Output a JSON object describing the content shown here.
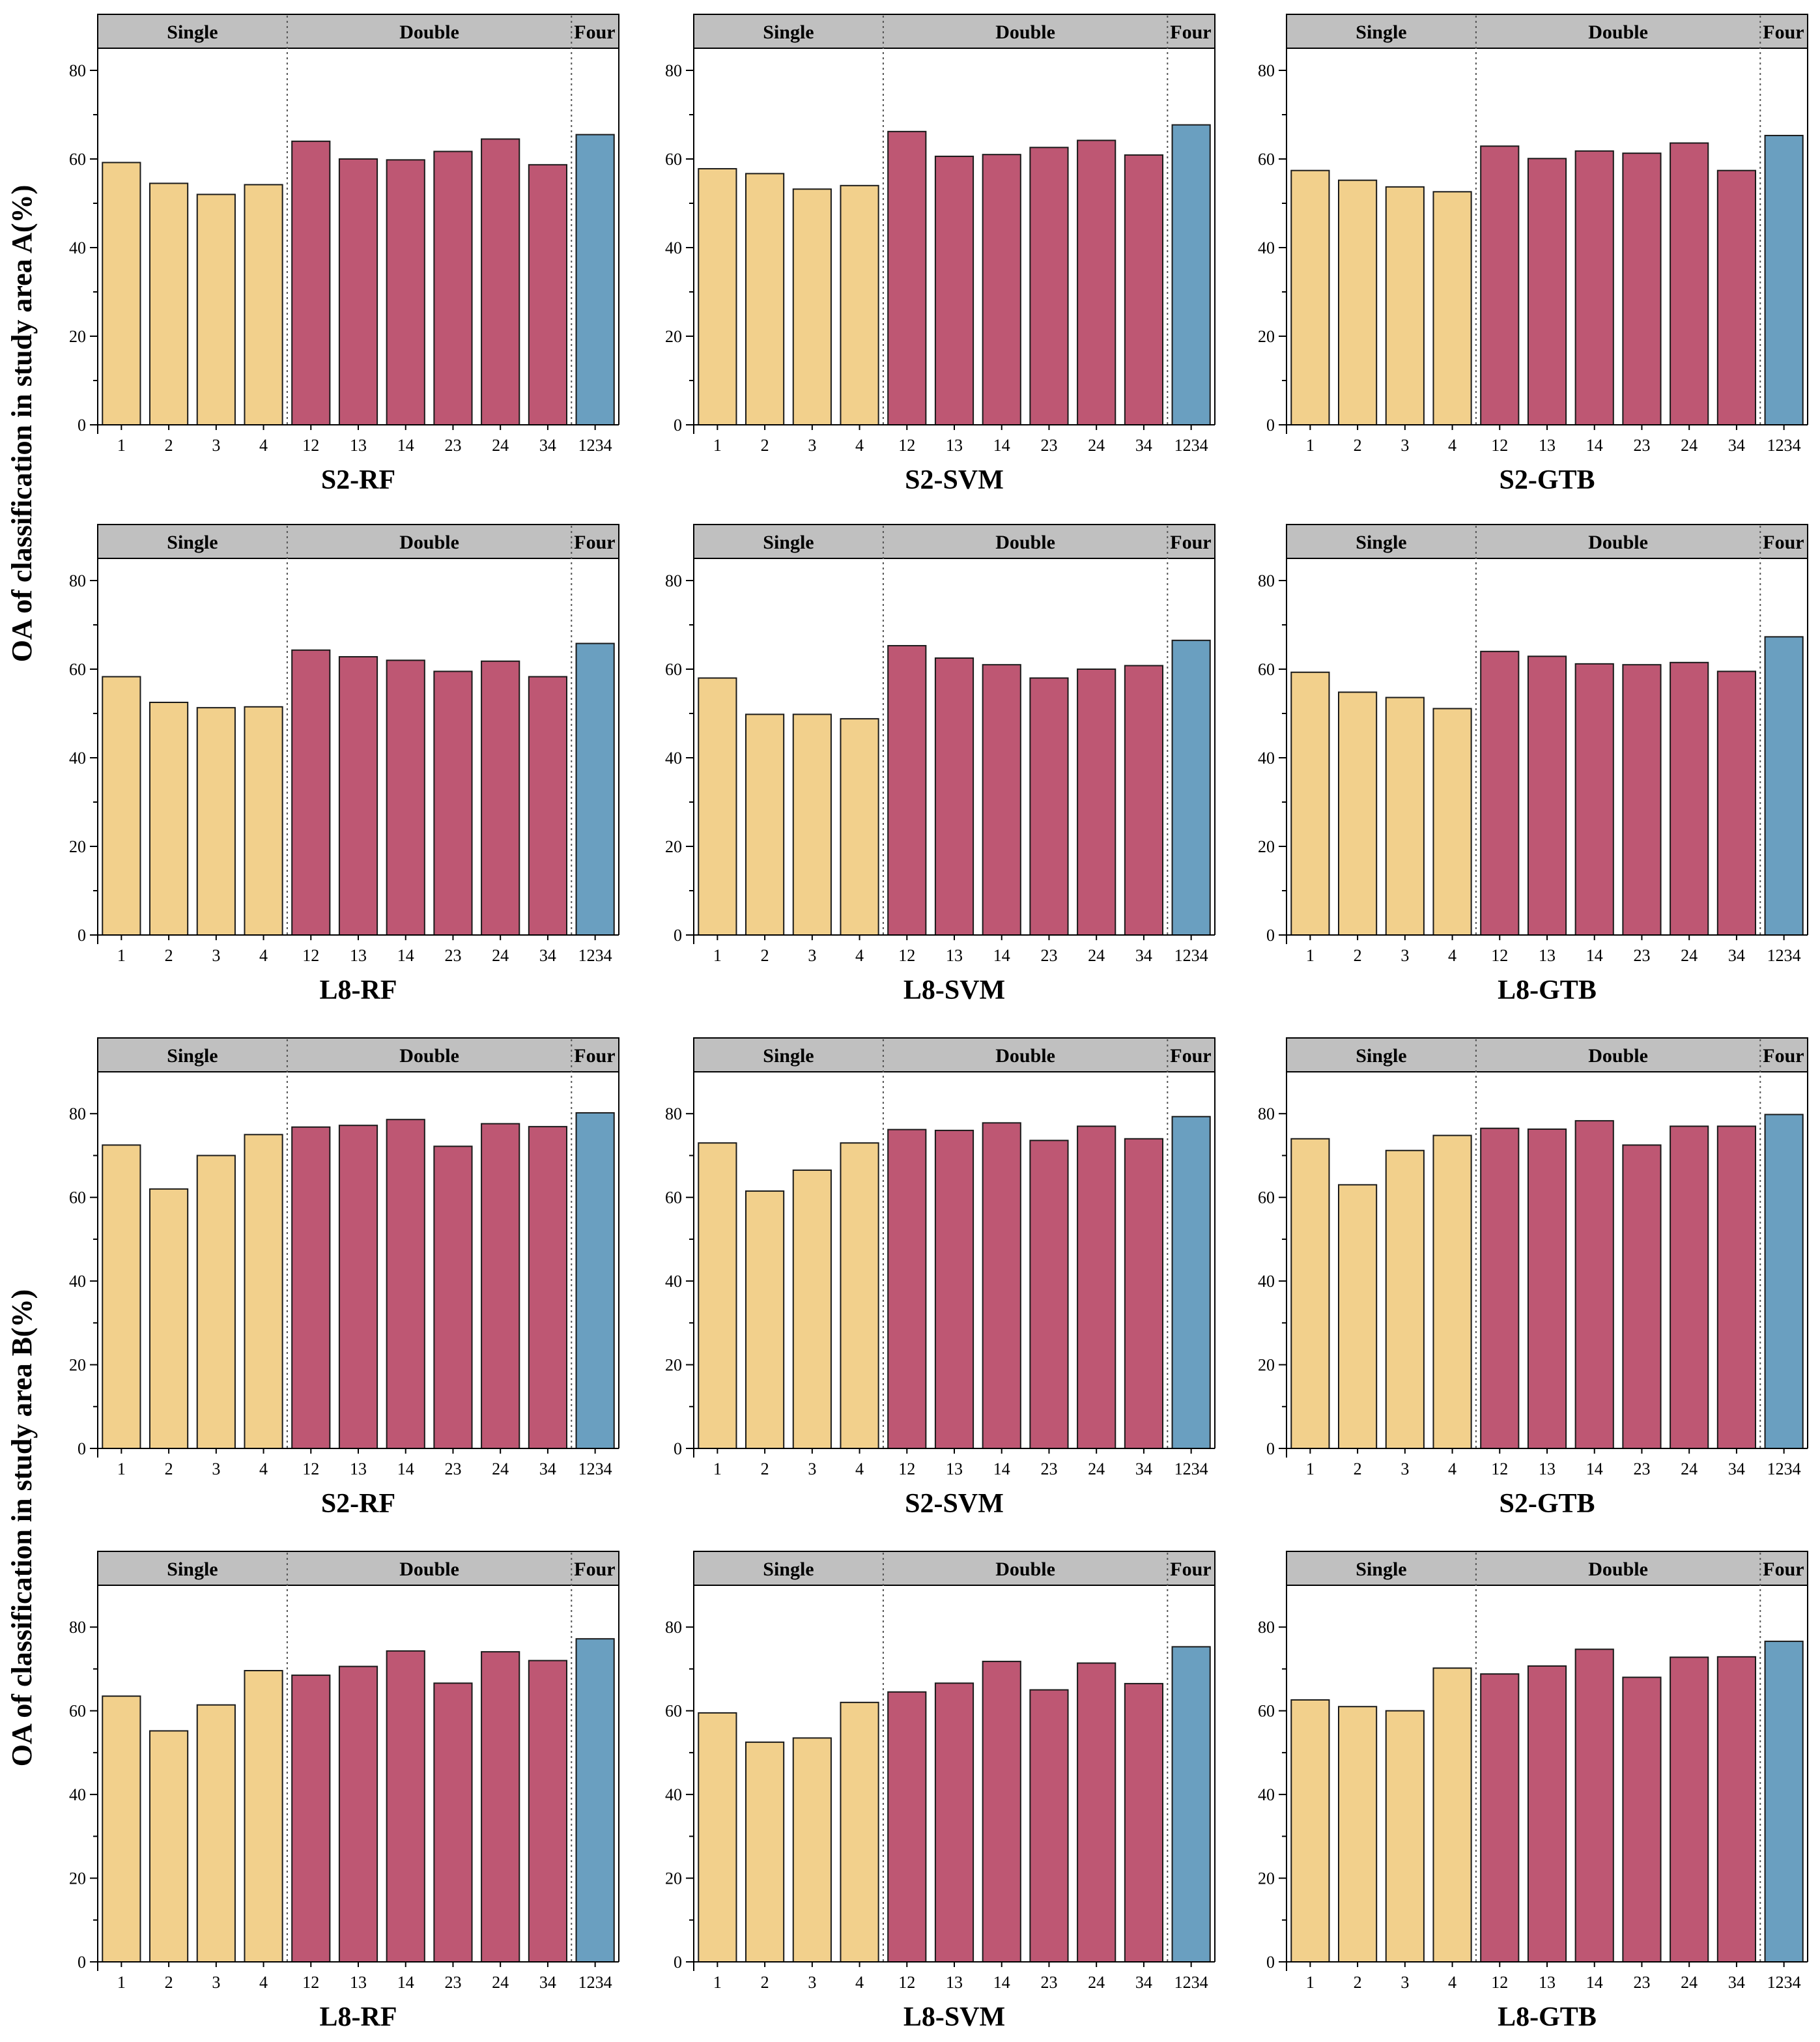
{
  "figure": {
    "ylabel_top": "OA of classification in study area A(%)",
    "ylabel_bottom": "OA of classification in study area B(%)",
    "group_labels": [
      "Single",
      "Double",
      "Four"
    ],
    "colors": {
      "single": "#F2D08C",
      "double": "#BE5773",
      "four": "#6A9FC0",
      "header": "#C0C0C0",
      "frame": "#000000"
    }
  },
  "chart_data": [
    {
      "type": "bar",
      "title": "S2-RF",
      "study_area": "A",
      "categories": [
        "1",
        "2",
        "3",
        "4",
        "12",
        "13",
        "14",
        "23",
        "24",
        "34",
        "1234"
      ],
      "values": [
        59.2,
        54.5,
        52.0,
        54.2,
        64.0,
        60.0,
        59.8,
        61.7,
        64.5,
        58.7,
        65.5
      ],
      "groups": [
        "single",
        "single",
        "single",
        "single",
        "double",
        "double",
        "double",
        "double",
        "double",
        "double",
        "four"
      ],
      "ylim": [
        0,
        85
      ],
      "yticks": [
        0,
        20,
        40,
        60,
        80
      ]
    },
    {
      "type": "bar",
      "title": "S2-SVM",
      "study_area": "A",
      "categories": [
        "1",
        "2",
        "3",
        "4",
        "12",
        "13",
        "14",
        "23",
        "24",
        "34",
        "1234"
      ],
      "values": [
        57.8,
        56.7,
        53.2,
        54.0,
        66.2,
        60.6,
        61.0,
        62.6,
        64.2,
        60.9,
        67.7
      ],
      "groups": [
        "single",
        "single",
        "single",
        "single",
        "double",
        "double",
        "double",
        "double",
        "double",
        "double",
        "four"
      ],
      "ylim": [
        0,
        85
      ],
      "yticks": [
        0,
        20,
        40,
        60,
        80
      ]
    },
    {
      "type": "bar",
      "title": "S2-GTB",
      "study_area": "A",
      "categories": [
        "1",
        "2",
        "3",
        "4",
        "12",
        "13",
        "14",
        "23",
        "24",
        "34",
        "1234"
      ],
      "values": [
        57.4,
        55.2,
        53.7,
        52.6,
        62.9,
        60.1,
        61.8,
        61.3,
        63.6,
        57.4,
        65.3
      ],
      "groups": [
        "single",
        "single",
        "single",
        "single",
        "double",
        "double",
        "double",
        "double",
        "double",
        "double",
        "four"
      ],
      "ylim": [
        0,
        85
      ],
      "yticks": [
        0,
        20,
        40,
        60,
        80
      ]
    },
    {
      "type": "bar",
      "title": "L8-RF",
      "study_area": "A",
      "categories": [
        "1",
        "2",
        "3",
        "4",
        "12",
        "13",
        "14",
        "23",
        "24",
        "34",
        "1234"
      ],
      "values": [
        58.3,
        52.5,
        51.3,
        51.5,
        64.3,
        62.8,
        62.0,
        59.5,
        61.8,
        58.3,
        65.8
      ],
      "groups": [
        "single",
        "single",
        "single",
        "single",
        "double",
        "double",
        "double",
        "double",
        "double",
        "double",
        "four"
      ],
      "ylim": [
        0,
        85
      ],
      "yticks": [
        0,
        20,
        40,
        60,
        80
      ]
    },
    {
      "type": "bar",
      "title": "L8-SVM",
      "study_area": "A",
      "categories": [
        "1",
        "2",
        "3",
        "4",
        "12",
        "13",
        "14",
        "23",
        "24",
        "34",
        "1234"
      ],
      "values": [
        58.0,
        49.8,
        49.8,
        48.8,
        65.3,
        62.5,
        61.0,
        58.0,
        60.0,
        60.8,
        66.5
      ],
      "groups": [
        "single",
        "single",
        "single",
        "single",
        "double",
        "double",
        "double",
        "double",
        "double",
        "double",
        "four"
      ],
      "ylim": [
        0,
        85
      ],
      "yticks": [
        0,
        20,
        40,
        60,
        80
      ]
    },
    {
      "type": "bar",
      "title": "L8-GTB",
      "study_area": "A",
      "categories": [
        "1",
        "2",
        "3",
        "4",
        "12",
        "13",
        "14",
        "23",
        "24",
        "34",
        "1234"
      ],
      "values": [
        59.3,
        54.8,
        53.6,
        51.1,
        64.0,
        62.9,
        61.2,
        61.0,
        61.5,
        59.5,
        67.3
      ],
      "groups": [
        "single",
        "single",
        "single",
        "single",
        "double",
        "double",
        "double",
        "double",
        "double",
        "double",
        "four"
      ],
      "ylim": [
        0,
        85
      ],
      "yticks": [
        0,
        20,
        40,
        60,
        80
      ]
    },
    {
      "type": "bar",
      "title": "S2-RF",
      "study_area": "B",
      "categories": [
        "1",
        "2",
        "3",
        "4",
        "12",
        "13",
        "14",
        "23",
        "24",
        "34",
        "1234"
      ],
      "values": [
        72.5,
        62.0,
        70.0,
        75.0,
        76.8,
        77.2,
        78.6,
        72.2,
        77.6,
        76.9,
        80.2
      ],
      "groups": [
        "single",
        "single",
        "single",
        "single",
        "double",
        "double",
        "double",
        "double",
        "double",
        "double",
        "four"
      ],
      "ylim": [
        0,
        90
      ],
      "yticks": [
        0,
        20,
        40,
        60,
        80
      ]
    },
    {
      "type": "bar",
      "title": "S2-SVM",
      "study_area": "B",
      "categories": [
        "1",
        "2",
        "3",
        "4",
        "12",
        "13",
        "14",
        "23",
        "24",
        "34",
        "1234"
      ],
      "values": [
        73.0,
        61.5,
        66.5,
        73.0,
        76.2,
        76.0,
        77.8,
        73.6,
        77.0,
        74.0,
        79.3
      ],
      "groups": [
        "single",
        "single",
        "single",
        "single",
        "double",
        "double",
        "double",
        "double",
        "double",
        "double",
        "four"
      ],
      "ylim": [
        0,
        90
      ],
      "yticks": [
        0,
        20,
        40,
        60,
        80
      ]
    },
    {
      "type": "bar",
      "title": "S2-GTB",
      "study_area": "B",
      "categories": [
        "1",
        "2",
        "3",
        "4",
        "12",
        "13",
        "14",
        "23",
        "24",
        "34",
        "1234"
      ],
      "values": [
        74.0,
        63.0,
        71.2,
        74.8,
        76.5,
        76.3,
        78.3,
        72.5,
        77.0,
        77.0,
        79.8
      ],
      "groups": [
        "single",
        "single",
        "single",
        "single",
        "double",
        "double",
        "double",
        "double",
        "double",
        "double",
        "four"
      ],
      "ylim": [
        0,
        90
      ],
      "yticks": [
        0,
        20,
        40,
        60,
        80
      ]
    },
    {
      "type": "bar",
      "title": "L8-RF",
      "study_area": "B",
      "categories": [
        "1",
        "2",
        "3",
        "4",
        "12",
        "13",
        "14",
        "23",
        "24",
        "34",
        "1234"
      ],
      "values": [
        63.5,
        55.2,
        61.4,
        69.6,
        68.5,
        70.6,
        74.3,
        66.6,
        74.1,
        72.0,
        77.2
      ],
      "groups": [
        "single",
        "single",
        "single",
        "single",
        "double",
        "double",
        "double",
        "double",
        "double",
        "double",
        "four"
      ],
      "ylim": [
        0,
        90
      ],
      "yticks": [
        0,
        20,
        40,
        60,
        80
      ]
    },
    {
      "type": "bar",
      "title": "L8-SVM",
      "study_area": "B",
      "categories": [
        "1",
        "2",
        "3",
        "4",
        "12",
        "13",
        "14",
        "23",
        "24",
        "34",
        "1234"
      ],
      "values": [
        59.5,
        52.5,
        53.5,
        62.0,
        64.5,
        66.6,
        71.8,
        65.0,
        71.4,
        66.5,
        75.3
      ],
      "groups": [
        "single",
        "single",
        "single",
        "single",
        "double",
        "double",
        "double",
        "double",
        "double",
        "double",
        "four"
      ],
      "ylim": [
        0,
        90
      ],
      "yticks": [
        0,
        20,
        40,
        60,
        80
      ]
    },
    {
      "type": "bar",
      "title": "L8-GTB",
      "study_area": "B",
      "categories": [
        "1",
        "2",
        "3",
        "4",
        "12",
        "13",
        "14",
        "23",
        "24",
        "34",
        "1234"
      ],
      "values": [
        62.6,
        61.0,
        60.0,
        70.2,
        68.8,
        70.7,
        74.7,
        68.0,
        72.8,
        72.9,
        76.6
      ],
      "groups": [
        "single",
        "single",
        "single",
        "single",
        "double",
        "double",
        "double",
        "double",
        "double",
        "double",
        "four"
      ],
      "ylim": [
        0,
        90
      ],
      "yticks": [
        0,
        20,
        40,
        60,
        80
      ]
    }
  ]
}
